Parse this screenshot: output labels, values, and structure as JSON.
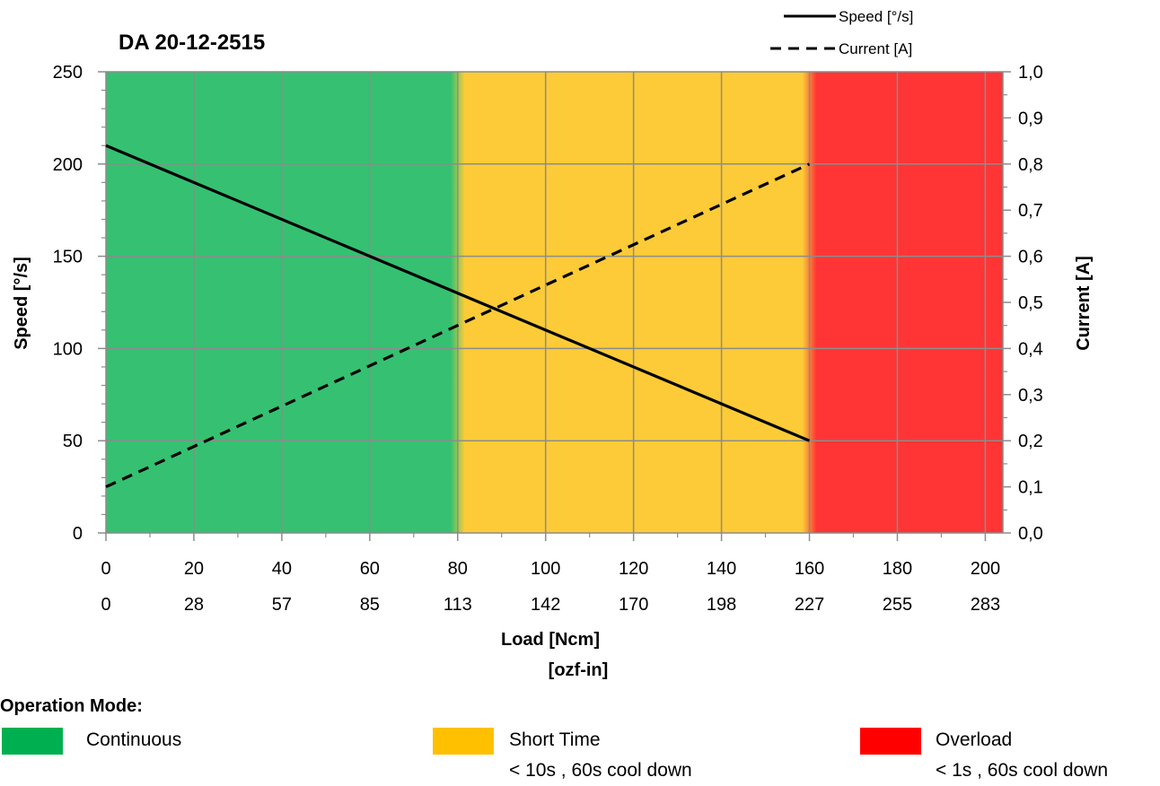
{
  "chart_data": {
    "type": "line",
    "title": "DA 20-12-2515",
    "xlabel": "Load [Ncm]",
    "xlabel2": "[ozf-in]",
    "ylabel": "Speed  [°/s]",
    "y2label": "Current  [A]",
    "xlim": [
      0,
      204
    ],
    "ylim": [
      0,
      250
    ],
    "y2lim": [
      0,
      1.0
    ],
    "x_ticks": [
      0,
      20,
      40,
      60,
      80,
      100,
      120,
      140,
      160,
      180,
      200
    ],
    "x_tick_labels": [
      "0",
      "20",
      "40",
      "60",
      "80",
      "100",
      "120",
      "140",
      "160",
      "180",
      "200"
    ],
    "x2_tick_labels": [
      "0",
      "28",
      "57",
      "85",
      "113",
      "142",
      "170",
      "198",
      "227",
      "255",
      "283"
    ],
    "y_ticks": [
      0,
      50,
      100,
      150,
      200,
      250
    ],
    "y_tick_labels": [
      "0",
      "50",
      "100",
      "150",
      "200",
      "250"
    ],
    "y2_ticks": [
      0,
      0.1,
      0.2,
      0.3,
      0.4,
      0.5,
      0.6,
      0.7,
      0.8,
      0.9,
      1.0
    ],
    "y2_tick_labels": [
      "0,0",
      "0,1",
      "0,2",
      "0,3",
      "0,4",
      "0,5",
      "0,6",
      "0,7",
      "0,8",
      "0,9",
      "1,0"
    ],
    "grid": true,
    "legend_position": "top-right",
    "series": [
      {
        "name": "Speed [°/s]",
        "axis": "left",
        "style": "solid",
        "x": [
          0,
          160
        ],
        "y": [
          210,
          50
        ]
      },
      {
        "name": "Current [A]",
        "axis": "right",
        "style": "dashed",
        "x": [
          0,
          160
        ],
        "y": [
          0.1,
          0.8
        ]
      }
    ],
    "zones": [
      {
        "name": "Continuous",
        "from": 0,
        "to": 80,
        "color": "#35C171"
      },
      {
        "name": "Short Time",
        "from": 80,
        "to": 160,
        "color": "#FCCB37"
      },
      {
        "name": "Overload",
        "from": 160,
        "to": 204,
        "color": "#FF3535"
      }
    ]
  },
  "operation_mode": {
    "title": "Operation Mode:",
    "items": [
      {
        "label": "Continuous",
        "sub": "",
        "color": "#00B050"
      },
      {
        "label": "Short Time",
        "sub": "< 10s , 60s cool down",
        "color": "#FFC000"
      },
      {
        "label": "Overload",
        "sub": "< 1s , 60s cool down",
        "color": "#FF0000"
      }
    ]
  }
}
